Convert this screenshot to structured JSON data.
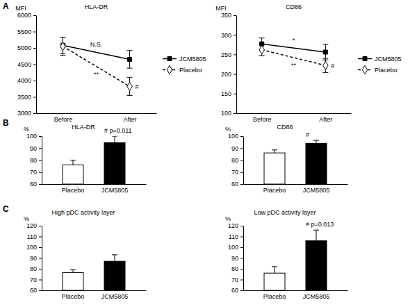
{
  "chart_data": [
    {
      "type": "line",
      "panel": "A",
      "title": "HLA-DR",
      "y_label": "MFI",
      "categories": [
        "Before",
        "After"
      ],
      "series": [
        {
          "name": "JCM5805",
          "color": "#000000",
          "marker": "square",
          "line_style": "solid",
          "values": [
            5080,
            4650
          ],
          "errors": [
            250,
            270
          ]
        },
        {
          "name": "Placebo",
          "color": "#000000",
          "marker": "diamond-open",
          "line_style": "dashed",
          "values": [
            5050,
            3820
          ],
          "errors": [
            280,
            280
          ]
        }
      ],
      "ylim": [
        3000,
        6000
      ],
      "yticks": [
        3000,
        3500,
        4000,
        4500,
        5000,
        5500,
        6000
      ],
      "legend": "right",
      "annotations": [
        {
          "text": "N.S.",
          "series": "JCM5805"
        },
        {
          "text": "**",
          "series": "Placebo"
        },
        {
          "text": "#",
          "series": "Placebo",
          "category": "After"
        }
      ]
    },
    {
      "type": "line",
      "title": "CD86",
      "y_label": "MFI",
      "categories": [
        "Before",
        "After"
      ],
      "series": [
        {
          "name": "JCM5805",
          "color": "#000000",
          "marker": "square",
          "line_style": "solid",
          "values": [
            277,
            256
          ],
          "errors": [
            15,
            20
          ]
        },
        {
          "name": "Placebo",
          "color": "#000000",
          "marker": "diamond-open",
          "line_style": "dashed",
          "values": [
            262,
            222
          ],
          "errors": [
            15,
            18
          ]
        }
      ],
      "ylim": [
        100,
        350
      ],
      "yticks": [
        100,
        150,
        200,
        250,
        300,
        350
      ],
      "legend": "right",
      "annotations": [
        {
          "text": "*",
          "series": "JCM5805"
        },
        {
          "text": "**",
          "series": "Placebo"
        },
        {
          "text": "#",
          "series": "Placebo",
          "category": "After"
        }
      ]
    },
    {
      "type": "bar",
      "panel": "B",
      "title": "HLA-DR",
      "y_label": "%",
      "categories": [
        "Placebo",
        "JCM5805"
      ],
      "values": [
        76,
        94.5
      ],
      "errors": [
        4,
        5.5
      ],
      "colors": [
        "#ffffff",
        "#000000"
      ],
      "ylim": [
        60,
        100
      ],
      "yticks": [
        60,
        70,
        80,
        90,
        100
      ],
      "annotations": [
        {
          "text": "# p=0.011",
          "category": "JCM5805"
        }
      ]
    },
    {
      "type": "bar",
      "title": "CD86",
      "y_label": "%",
      "categories": [
        "Placebo",
        "JCM5805"
      ],
      "values": [
        86,
        94
      ],
      "errors": [
        2.5,
        2.5
      ],
      "colors": [
        "#ffffff",
        "#000000"
      ],
      "ylim": [
        60,
        100
      ],
      "yticks": [
        60,
        70,
        80,
        90,
        100
      ],
      "annotations": [
        {
          "text": "#",
          "category": "JCM5805"
        }
      ]
    },
    {
      "type": "bar",
      "panel": "C",
      "title": "High pDC activity layer",
      "y_label": "%",
      "categories": [
        "Placebo",
        "JCM5805"
      ],
      "values": [
        76.5,
        87
      ],
      "errors": [
        2.5,
        6
      ],
      "colors": [
        "#ffffff",
        "#000000"
      ],
      "ylim": [
        60,
        120
      ],
      "yticks": [
        60,
        70,
        80,
        90,
        100,
        110,
        120
      ]
    },
    {
      "type": "bar",
      "title": "Low pDC activity layer",
      "y_label": "%",
      "categories": [
        "Placebo",
        "JCM5805"
      ],
      "values": [
        76,
        106
      ],
      "errors": [
        6,
        10
      ],
      "colors": [
        "#ffffff",
        "#000000"
      ],
      "ylim": [
        60,
        120
      ],
      "yticks": [
        60,
        70,
        80,
        90,
        100,
        110,
        120
      ],
      "annotations": [
        {
          "text": "# p=0.013",
          "category": "JCM5805"
        }
      ]
    }
  ]
}
